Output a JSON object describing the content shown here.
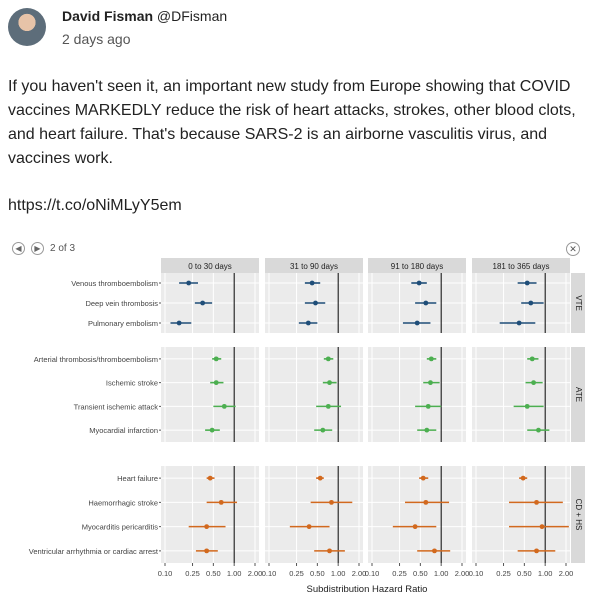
{
  "tweet": {
    "author_name": "David Fisman",
    "author_handle": "@DFisman",
    "time": "2 days ago",
    "text": "If you haven't seen it, an important new study from Europe showing that COVID vaccines MARKEDLY reduce the risk of heart attacks, strokes, other blood clots, and heart failure. That's because SARS-2 is an airborne vasculitis virus, and vaccines work.",
    "link": "https://t.co/oNiMLyY5em"
  },
  "gallery": {
    "prev_icon": "left-arrow-icon",
    "next_icon": "right-arrow-icon",
    "close_icon": "close-icon",
    "counter": "2 of 3"
  },
  "chart_data": {
    "type": "scatter",
    "xlabel": "Subdistribution Hazard Ratio",
    "x_scale": "log",
    "xlim": [
      0.1,
      2.0
    ],
    "x_ticks": [
      "0.10",
      "0.25",
      "0.50",
      "1.00",
      "2.00"
    ],
    "reference_line": 1.0,
    "periods": [
      "0 to 30 days",
      "31 to 90 days",
      "91 to 180 days",
      "181 to 365 days"
    ],
    "groups": [
      {
        "label": "VTE",
        "color": "#1f4e79",
        "outcomes": [
          {
            "name": "Venous thromboembolism",
            "hr": [
              0.22,
              0.42,
              0.48,
              0.55
            ],
            "lo": [
              0.16,
              0.33,
              0.37,
              0.4
            ],
            "hi": [
              0.3,
              0.55,
              0.62,
              0.75
            ]
          },
          {
            "name": "Deep vein thrombosis",
            "hr": [
              0.35,
              0.47,
              0.6,
              0.62
            ],
            "lo": [
              0.27,
              0.33,
              0.42,
              0.45
            ],
            "hi": [
              0.48,
              0.65,
              0.85,
              0.95
            ]
          },
          {
            "name": "Pulmonary embolism",
            "hr": [
              0.16,
              0.37,
              0.45,
              0.42
            ],
            "lo": [
              0.12,
              0.27,
              0.28,
              0.22
            ],
            "hi": [
              0.24,
              0.5,
              0.7,
              0.72
            ]
          }
        ]
      },
      {
        "label": "ATE",
        "color": "#4caf50",
        "outcomes": [
          {
            "name": "Arterial thrombosis/thromboembolism",
            "hr": [
              0.55,
              0.72,
              0.72,
              0.65
            ],
            "lo": [
              0.48,
              0.62,
              0.62,
              0.55
            ],
            "hi": [
              0.65,
              0.85,
              0.85,
              0.8
            ]
          },
          {
            "name": "Ischemic stroke",
            "hr": [
              0.55,
              0.75,
              0.7,
              0.68
            ],
            "lo": [
              0.45,
              0.6,
              0.55,
              0.52
            ],
            "hi": [
              0.7,
              0.95,
              0.95,
              0.92
            ]
          },
          {
            "name": "Transient ischemic attack",
            "hr": [
              0.72,
              0.72,
              0.65,
              0.55
            ],
            "lo": [
              0.5,
              0.48,
              0.42,
              0.35
            ],
            "hi": [
              1.05,
              1.1,
              1.0,
              0.95
            ]
          },
          {
            "name": "Myocardial infarction",
            "hr": [
              0.48,
              0.6,
              0.62,
              0.8
            ],
            "lo": [
              0.38,
              0.45,
              0.45,
              0.55
            ],
            "hi": [
              0.62,
              0.82,
              0.85,
              1.15
            ]
          }
        ]
      },
      {
        "label": "CD + HS",
        "color": "#d2691e",
        "outcomes": [
          {
            "name": "Heart failure",
            "hr": [
              0.45,
              0.55,
              0.55,
              0.48
            ],
            "lo": [
              0.4,
              0.48,
              0.48,
              0.42
            ],
            "hi": [
              0.52,
              0.62,
              0.65,
              0.55
            ]
          },
          {
            "name": "Haemorrhagic stroke",
            "hr": [
              0.65,
              0.8,
              0.6,
              0.75
            ],
            "lo": [
              0.4,
              0.4,
              0.3,
              0.3
            ],
            "hi": [
              1.1,
              1.6,
              1.3,
              1.8
            ]
          },
          {
            "name": "Myocarditis pericarditis",
            "hr": [
              0.4,
              0.38,
              0.42,
              0.9
            ],
            "lo": [
              0.22,
              0.2,
              0.2,
              0.3
            ],
            "hi": [
              0.75,
              0.75,
              0.85,
              2.2
            ]
          },
          {
            "name": "Ventricular arrhythmia or cardiac arrest",
            "hr": [
              0.4,
              0.75,
              0.8,
              0.75
            ],
            "lo": [
              0.28,
              0.45,
              0.45,
              0.4
            ],
            "hi": [
              0.58,
              1.25,
              1.35,
              1.4
            ]
          }
        ]
      }
    ]
  }
}
